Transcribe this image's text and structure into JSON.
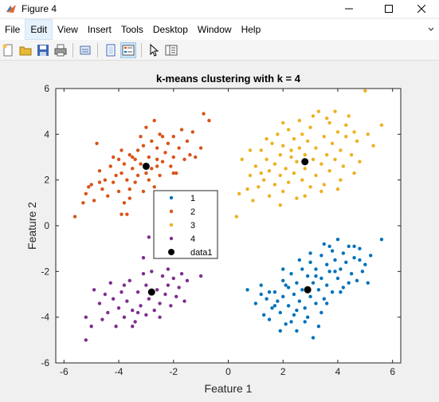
{
  "window": {
    "title": "Figure 4"
  },
  "menu": {
    "items": [
      "File",
      "Edit",
      "View",
      "Insert",
      "Tools",
      "Desktop",
      "Window",
      "Help"
    ],
    "active_index": 1
  },
  "toolbar": {
    "icons": [
      "new-figure-icon",
      "open-file-icon",
      "save-icon",
      "print-icon",
      "link-plot-icon",
      "hide-plot-tools-icon",
      "insert-legend-icon",
      "pointer-icon",
      "show-plot-tools-icon"
    ]
  },
  "chart_data": {
    "type": "scatter",
    "title": "k-means clustering with k = 4",
    "xlabel": "Feature 1",
    "ylabel": "Feature 2",
    "xlim": [
      -6.3,
      6.3
    ],
    "ylim": [
      -6,
      6
    ],
    "xticks": [
      -6,
      -4,
      -2,
      0,
      2,
      4,
      6
    ],
    "yticks": [
      -6,
      -4,
      -2,
      0,
      2,
      4,
      6
    ],
    "legend": {
      "placement": "center",
      "entries": [
        {
          "label": "1",
          "color": "#0072BD"
        },
        {
          "label": "2",
          "color": "#D95319"
        },
        {
          "label": "3",
          "color": "#EDB120"
        },
        {
          "label": "4",
          "color": "#7E2F8E"
        },
        {
          "label": "data1",
          "color": "#000000"
        }
      ]
    },
    "series": [
      {
        "name": "1",
        "color": "#0072BD",
        "points": [
          [
            0.7,
            -2.8
          ],
          [
            1.0,
            -3.4
          ],
          [
            1.2,
            -2.6
          ],
          [
            1.3,
            -3.9
          ],
          [
            1.4,
            -3.2
          ],
          [
            1.5,
            -4.1
          ],
          [
            1.6,
            -3.6
          ],
          [
            1.7,
            -2.9
          ],
          [
            1.8,
            -3.3
          ],
          [
            1.9,
            -3.8
          ],
          [
            2.0,
            -2.4
          ],
          [
            2.0,
            -3.1
          ],
          [
            2.1,
            -4.3
          ],
          [
            2.2,
            -2.7
          ],
          [
            2.2,
            -3.5
          ],
          [
            2.3,
            -2.1
          ],
          [
            2.4,
            -3.0
          ],
          [
            2.4,
            -3.9
          ],
          [
            2.5,
            -2.5
          ],
          [
            2.5,
            -4.6
          ],
          [
            2.6,
            -3.3
          ],
          [
            2.7,
            -1.9
          ],
          [
            2.7,
            -2.8
          ],
          [
            2.8,
            -3.6
          ],
          [
            2.9,
            -2.2
          ],
          [
            2.9,
            -4.0
          ],
          [
            3.0,
            -1.6
          ],
          [
            3.0,
            -3.1
          ],
          [
            3.1,
            -2.5
          ],
          [
            3.1,
            -4.9
          ],
          [
            3.2,
            -1.9
          ],
          [
            3.2,
            -3.4
          ],
          [
            3.3,
            -2.8
          ],
          [
            3.4,
            -1.3
          ],
          [
            3.4,
            -2.3
          ],
          [
            3.5,
            -3.2
          ],
          [
            3.5,
            -0.8
          ],
          [
            3.6,
            -1.7
          ],
          [
            3.6,
            -2.6
          ],
          [
            3.7,
            -2.0
          ],
          [
            3.8,
            -1.1
          ],
          [
            3.8,
            -2.9
          ],
          [
            3.9,
            -1.5
          ],
          [
            4.0,
            -2.3
          ],
          [
            4.0,
            -0.6
          ],
          [
            4.1,
            -1.9
          ],
          [
            4.2,
            -1.2
          ],
          [
            4.2,
            -2.7
          ],
          [
            4.3,
            -1.6
          ],
          [
            4.4,
            -0.9
          ],
          [
            4.5,
            -2.1
          ],
          [
            4.6,
            -1.4
          ],
          [
            4.7,
            -2.4
          ],
          [
            4.8,
            -1.0
          ],
          [
            5.0,
            -1.7
          ],
          [
            5.1,
            -2.5
          ],
          [
            5.2,
            -1.3
          ],
          [
            5.6,
            -0.6
          ],
          [
            3.3,
            -4.4
          ],
          [
            2.8,
            -4.2
          ],
          [
            1.9,
            -4.6
          ],
          [
            2.3,
            -4.2
          ],
          [
            3.6,
            -3.4
          ],
          [
            3.9,
            -2.0
          ],
          [
            4.4,
            -2.5
          ],
          [
            3.2,
            -2.2
          ],
          [
            2.6,
            -1.5
          ],
          [
            1.5,
            -2.9
          ],
          [
            2.0,
            -1.9
          ],
          [
            3.7,
            -0.9
          ],
          [
            4.6,
            -0.9
          ],
          [
            4.9,
            -2.0
          ],
          [
            1.7,
            -3.5
          ],
          [
            2.5,
            -3.7
          ],
          [
            3.4,
            -3.8
          ],
          [
            4.1,
            -2.9
          ],
          [
            3.0,
            -1.2
          ],
          [
            4.8,
            -1.5
          ],
          [
            2.1,
            -2.6
          ],
          [
            1.2,
            -3.0
          ]
        ]
      },
      {
        "name": "2",
        "color": "#D95319",
        "points": [
          [
            -5.6,
            0.4
          ],
          [
            -5.3,
            1.0
          ],
          [
            -5.2,
            1.4
          ],
          [
            -5.0,
            1.8
          ],
          [
            -4.9,
            1.1
          ],
          [
            -4.8,
            3.6
          ],
          [
            -4.7,
            2.4
          ],
          [
            -4.6,
            1.6
          ],
          [
            -4.5,
            2.0
          ],
          [
            -4.4,
            1.3
          ],
          [
            -4.3,
            2.6
          ],
          [
            -4.2,
            1.9
          ],
          [
            -4.1,
            2.2
          ],
          [
            -4.0,
            1.5
          ],
          [
            -4.0,
            2.9
          ],
          [
            -3.9,
            2.3
          ],
          [
            -3.8,
            1.0
          ],
          [
            -3.8,
            2.7
          ],
          [
            -3.7,
            2.0
          ],
          [
            -3.6,
            3.1
          ],
          [
            -3.6,
            1.6
          ],
          [
            -3.5,
            2.5
          ],
          [
            -3.4,
            2.9
          ],
          [
            -3.4,
            1.9
          ],
          [
            -3.3,
            3.3
          ],
          [
            -3.3,
            2.2
          ],
          [
            -3.2,
            2.7
          ],
          [
            -3.1,
            3.5
          ],
          [
            -3.1,
            1.5
          ],
          [
            -3.0,
            2.3
          ],
          [
            -2.9,
            3.0
          ],
          [
            -2.9,
            2.0
          ],
          [
            -2.8,
            3.7
          ],
          [
            -2.8,
            2.5
          ],
          [
            -2.7,
            1.7
          ],
          [
            -2.6,
            2.9
          ],
          [
            -2.6,
            3.4
          ],
          [
            -2.5,
            2.2
          ],
          [
            -2.5,
            4.0
          ],
          [
            -2.4,
            2.8
          ],
          [
            -2.3,
            3.2
          ],
          [
            -2.3,
            1.4
          ],
          [
            -2.2,
            3.6
          ],
          [
            -2.1,
            2.6
          ],
          [
            -2.0,
            3.9
          ],
          [
            -2.0,
            3.0
          ],
          [
            -1.9,
            2.3
          ],
          [
            -1.8,
            3.4
          ],
          [
            -1.7,
            4.2
          ],
          [
            -1.6,
            2.9
          ],
          [
            -1.5,
            3.7
          ],
          [
            -1.4,
            3.1
          ],
          [
            -1.3,
            4.1
          ],
          [
            -1.0,
            3.4
          ],
          [
            -0.9,
            4.9
          ],
          [
            -0.7,
            4.6
          ],
          [
            -3.9,
            0.5
          ],
          [
            -3.7,
            0.5
          ],
          [
            -2.2,
            1.2
          ],
          [
            -2.6,
            2.6
          ],
          [
            -3.2,
            3.9
          ],
          [
            -3.5,
            3.0
          ],
          [
            -4.7,
            1.9
          ],
          [
            -3.0,
            4.3
          ],
          [
            -2.4,
            3.9
          ],
          [
            -4.2,
            3.0
          ],
          [
            -5.1,
            1.7
          ],
          [
            -3.6,
            1.2
          ],
          [
            -2.0,
            2.3
          ],
          [
            -1.2,
            3.0
          ],
          [
            -2.7,
            4.6
          ],
          [
            -3.9,
            3.3
          ]
        ]
      },
      {
        "name": "3",
        "color": "#EDB120",
        "points": [
          [
            0.3,
            0.4
          ],
          [
            0.4,
            1.4
          ],
          [
            0.5,
            2.9
          ],
          [
            0.7,
            1.6
          ],
          [
            0.8,
            2.2
          ],
          [
            0.9,
            1.1
          ],
          [
            1.0,
            2.6
          ],
          [
            1.1,
            1.7
          ],
          [
            1.2,
            3.3
          ],
          [
            1.3,
            2.0
          ],
          [
            1.4,
            2.9
          ],
          [
            1.5,
            1.3
          ],
          [
            1.5,
            2.4
          ],
          [
            1.6,
            3.6
          ],
          [
            1.7,
            1.8
          ],
          [
            1.7,
            2.7
          ],
          [
            1.8,
            4.0
          ],
          [
            1.9,
            2.2
          ],
          [
            1.9,
            3.1
          ],
          [
            2.0,
            1.5
          ],
          [
            2.0,
            3.5
          ],
          [
            2.1,
            2.5
          ],
          [
            2.2,
            4.2
          ],
          [
            2.2,
            1.9
          ],
          [
            2.3,
            3.0
          ],
          [
            2.4,
            2.3
          ],
          [
            2.4,
            3.8
          ],
          [
            2.5,
            1.2
          ],
          [
            2.5,
            2.8
          ],
          [
            2.6,
            3.4
          ],
          [
            2.6,
            4.6
          ],
          [
            2.7,
            2.0
          ],
          [
            2.8,
            3.1
          ],
          [
            2.8,
            2.5
          ],
          [
            2.9,
            3.7
          ],
          [
            3.0,
            1.7
          ],
          [
            3.0,
            4.3
          ],
          [
            3.1,
            2.9
          ],
          [
            3.2,
            3.4
          ],
          [
            3.2,
            2.2
          ],
          [
            3.3,
            5.0
          ],
          [
            3.4,
            2.7
          ],
          [
            3.5,
            3.9
          ],
          [
            3.5,
            1.8
          ],
          [
            3.6,
            3.1
          ],
          [
            3.7,
            4.5
          ],
          [
            3.7,
            2.4
          ],
          [
            3.8,
            3.6
          ],
          [
            3.9,
            2.9
          ],
          [
            4.0,
            4.1
          ],
          [
            4.0,
            1.6
          ],
          [
            4.1,
            3.3
          ],
          [
            4.2,
            2.6
          ],
          [
            4.3,
            3.9
          ],
          [
            4.4,
            4.8
          ],
          [
            4.5,
            3.1
          ],
          [
            4.6,
            2.3
          ],
          [
            4.7,
            3.7
          ],
          [
            4.8,
            2.8
          ],
          [
            5.1,
            4.0
          ],
          [
            5.3,
            3.5
          ],
          [
            5.6,
            4.4
          ],
          [
            5.0,
            5.9
          ],
          [
            4.3,
            4.4
          ],
          [
            3.6,
            4.7
          ],
          [
            2.3,
            3.3
          ],
          [
            1.9,
            0.9
          ],
          [
            2.8,
            1.3
          ],
          [
            3.4,
            1.5
          ],
          [
            4.1,
            2.0
          ],
          [
            2.7,
            4.0
          ],
          [
            1.4,
            3.8
          ],
          [
            3.9,
            5.0
          ],
          [
            4.6,
            4.1
          ],
          [
            1.2,
            2.3
          ],
          [
            0.8,
            3.3
          ],
          [
            2.0,
            4.5
          ],
          [
            3.1,
            4.8
          ]
        ]
      },
      {
        "name": "4",
        "color": "#7E2F8E",
        "points": [
          [
            -5.2,
            -5.0
          ],
          [
            -5.2,
            -4.0
          ],
          [
            -5.0,
            -4.4
          ],
          [
            -4.9,
            -2.8
          ],
          [
            -4.7,
            -3.4
          ],
          [
            -4.6,
            -4.1
          ],
          [
            -4.4,
            -3.8
          ],
          [
            -4.3,
            -2.5
          ],
          [
            -4.2,
            -3.2
          ],
          [
            -4.1,
            -4.4
          ],
          [
            -4.0,
            -3.6
          ],
          [
            -3.9,
            -2.9
          ],
          [
            -3.8,
            -4.0
          ],
          [
            -3.7,
            -3.3
          ],
          [
            -3.6,
            -2.4
          ],
          [
            -3.5,
            -3.7
          ],
          [
            -3.4,
            -4.2
          ],
          [
            -3.3,
            -2.9
          ],
          [
            -3.2,
            -3.5
          ],
          [
            -3.1,
            -2.1
          ],
          [
            -3.0,
            -3.9
          ],
          [
            -3.0,
            -2.6
          ],
          [
            -2.9,
            -3.2
          ],
          [
            -2.8,
            -2.0
          ],
          [
            -2.7,
            -3.7
          ],
          [
            -2.6,
            -2.8
          ],
          [
            -2.5,
            -3.4
          ],
          [
            -2.4,
            -2.2
          ],
          [
            -2.3,
            -3.0
          ],
          [
            -2.2,
            -2.6
          ],
          [
            -2.1,
            -3.5
          ],
          [
            -2.0,
            -2.3
          ],
          [
            -1.9,
            -3.1
          ],
          [
            -1.8,
            -2.7
          ],
          [
            -1.6,
            -3.3
          ],
          [
            -1.5,
            -2.4
          ],
          [
            -2.9,
            -0.5
          ],
          [
            -3.1,
            -1.4
          ],
          [
            -2.0,
            -1.2
          ],
          [
            -1.0,
            -2.2
          ],
          [
            -3.5,
            -4.4
          ],
          [
            -2.5,
            -4.0
          ],
          [
            -4.5,
            -3.0
          ],
          [
            -3.8,
            -2.6
          ],
          [
            -2.2,
            -1.9
          ],
          [
            -3.3,
            -3.8
          ],
          [
            -1.7,
            -2.1
          ]
        ]
      }
    ],
    "centroids": {
      "name": "data1",
      "color": "#000000",
      "points": [
        [
          -3.0,
          2.6
        ],
        [
          2.8,
          2.8
        ],
        [
          2.9,
          -2.8
        ],
        [
          -2.8,
          -2.9
        ]
      ]
    }
  }
}
